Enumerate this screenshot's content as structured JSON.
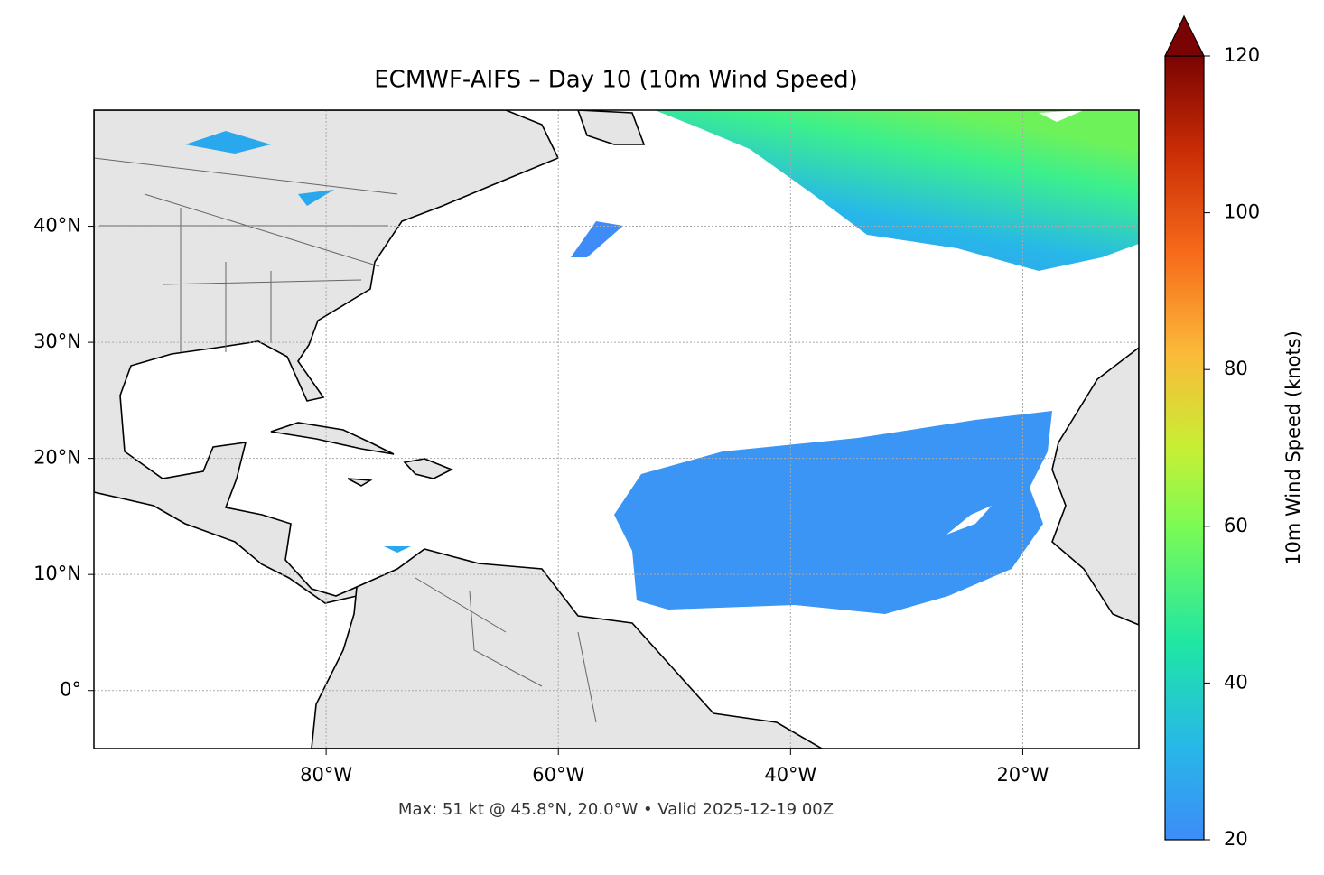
{
  "map": {
    "title": "ECMWF-AIFS – Day 10 (10m Wind Speed)",
    "lonlim": [
      -100,
      -10
    ],
    "latlim": [
      -5,
      50
    ],
    "lon_ticks": [
      {
        "value": -80,
        "label": "80°W"
      },
      {
        "value": -60,
        "label": "60°W"
      },
      {
        "value": -40,
        "label": "40°W"
      },
      {
        "value": -20,
        "label": "20°W"
      }
    ],
    "lat_ticks": [
      {
        "value": 0,
        "label": "0°"
      },
      {
        "value": 10,
        "label": "10°N"
      },
      {
        "value": 20,
        "label": "20°N"
      },
      {
        "value": 30,
        "label": "30°N"
      },
      {
        "value": 40,
        "label": "40°N"
      }
    ],
    "grid": true,
    "colorbar": {
      "label": "10m Wind Speed (knots)",
      "lim": [
        20,
        120
      ],
      "ticks": [
        20,
        40,
        60,
        80,
        100,
        120
      ]
    },
    "footer": "Max: 51 kt @ 45.8°N, 20.0°W • Valid 2025-12-19 00Z"
  }
}
